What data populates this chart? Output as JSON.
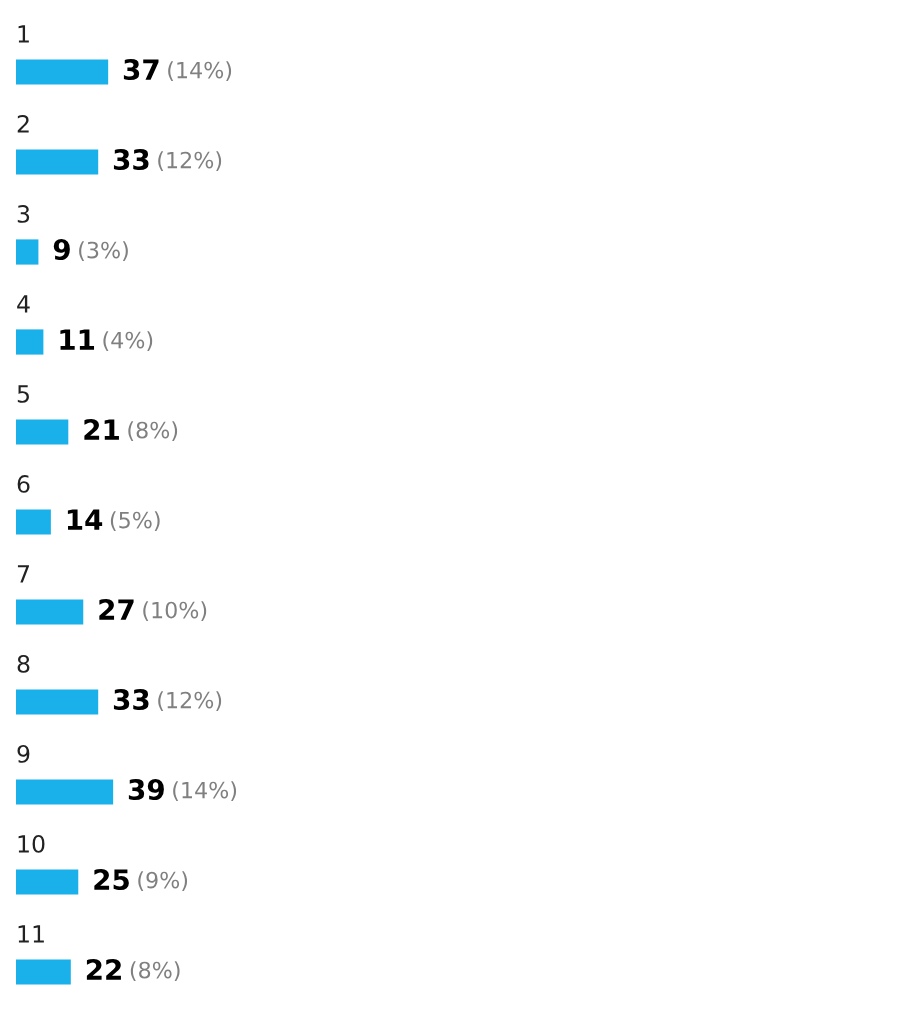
{
  "chart_data": {
    "type": "bar",
    "orientation": "horizontal",
    "categories": [
      "1",
      "2",
      "3",
      "4",
      "5",
      "6",
      "7",
      "8",
      "9",
      "10",
      "11"
    ],
    "values": [
      37,
      33,
      9,
      11,
      21,
      14,
      27,
      33,
      39,
      25,
      22
    ],
    "value_labels": [
      "37 (14%)",
      "33 (12%)",
      "9 (3%)",
      "11 (4%)",
      "21 (8%)",
      "14 (5%)",
      "27 (10%)",
      "33 (12%)",
      "39 (14%)",
      "25 (9%)",
      "22 (8%)"
    ],
    "color": "#1ab0ea",
    "tick_labels": false
  }
}
